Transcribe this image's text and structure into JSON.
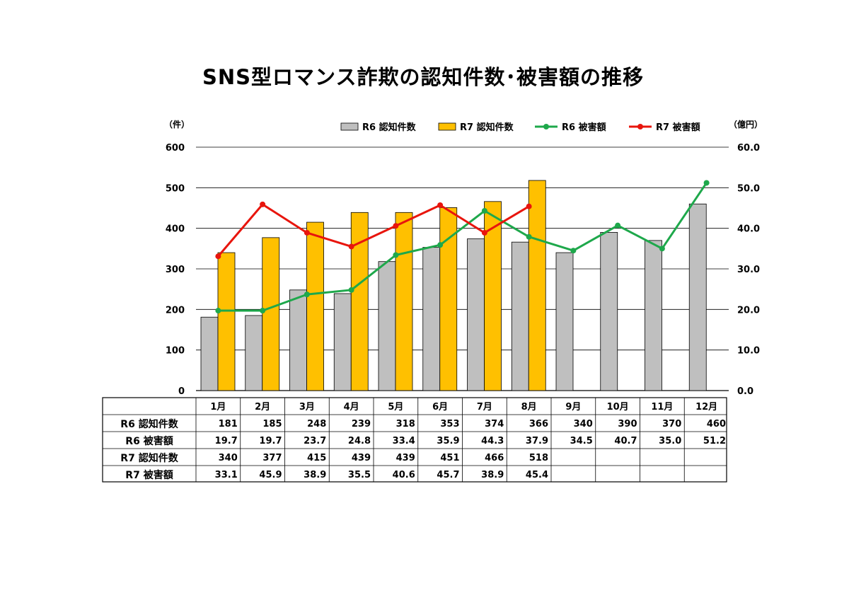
{
  "chart_data": {
    "type": "bar",
    "title": "SNS型ロマンス詐欺の認知件数･被害額の推移",
    "categories": [
      "1月",
      "2月",
      "3月",
      "4月",
      "5月",
      "6月",
      "7月",
      "8月",
      "9月",
      "10月",
      "11月",
      "12月"
    ],
    "y_left": {
      "unit": "（件）",
      "ylim": [
        0,
        600
      ],
      "ticks": [
        "0",
        "100",
        "200",
        "300",
        "400",
        "500",
        "600"
      ]
    },
    "y_right": {
      "unit": "（億円）",
      "ylim": [
        0,
        60
      ],
      "ticks": [
        "0.0",
        "10.0",
        "20.0",
        "30.0",
        "40.0",
        "50.0",
        "60.0"
      ]
    },
    "grid": true,
    "legend_position": "top",
    "series": [
      {
        "name": "R6 認知件数",
        "kind": "bar",
        "axis": "left",
        "color": "#BFBFBF",
        "values": [
          181,
          185,
          248,
          239,
          318,
          353,
          374,
          366,
          340,
          390,
          370,
          460
        ]
      },
      {
        "name": "R7 認知件数",
        "kind": "bar",
        "axis": "left",
        "color": "#FFC000",
        "values": [
          340,
          377,
          415,
          439,
          439,
          451,
          466,
          518,
          null,
          null,
          null,
          null
        ]
      },
      {
        "name": "R6 被害額",
        "kind": "line",
        "axis": "right",
        "color": "#1EA84B",
        "values": [
          19.7,
          19.7,
          23.7,
          24.8,
          33.4,
          35.9,
          44.3,
          37.9,
          34.5,
          40.7,
          35.0,
          51.2
        ]
      },
      {
        "name": "R7 被害額",
        "kind": "line",
        "axis": "right",
        "color": "#E8150D",
        "values": [
          33.1,
          45.9,
          38.9,
          35.5,
          40.6,
          45.7,
          38.9,
          45.4,
          null,
          null,
          null,
          null
        ]
      }
    ],
    "table": {
      "rows": [
        {
          "label": "R6 認知件数",
          "cells": [
            "181",
            "185",
            "248",
            "239",
            "318",
            "353",
            "374",
            "366",
            "340",
            "390",
            "370",
            "460"
          ]
        },
        {
          "label": "R6 被害額",
          "cells": [
            "19.7",
            "19.7",
            "23.7",
            "24.8",
            "33.4",
            "35.9",
            "44.3",
            "37.9",
            "34.5",
            "40.7",
            "35.0",
            "51.2"
          ]
        },
        {
          "label": "R7 認知件数",
          "cells": [
            "340",
            "377",
            "415",
            "439",
            "439",
            "451",
            "466",
            "518",
            "",
            "",
            "",
            ""
          ]
        },
        {
          "label": "R7 被害額",
          "cells": [
            "33.1",
            "45.9",
            "38.9",
            "35.5",
            "40.6",
            "45.7",
            "38.9",
            "45.4",
            "",
            "",
            "",
            ""
          ]
        }
      ]
    }
  }
}
